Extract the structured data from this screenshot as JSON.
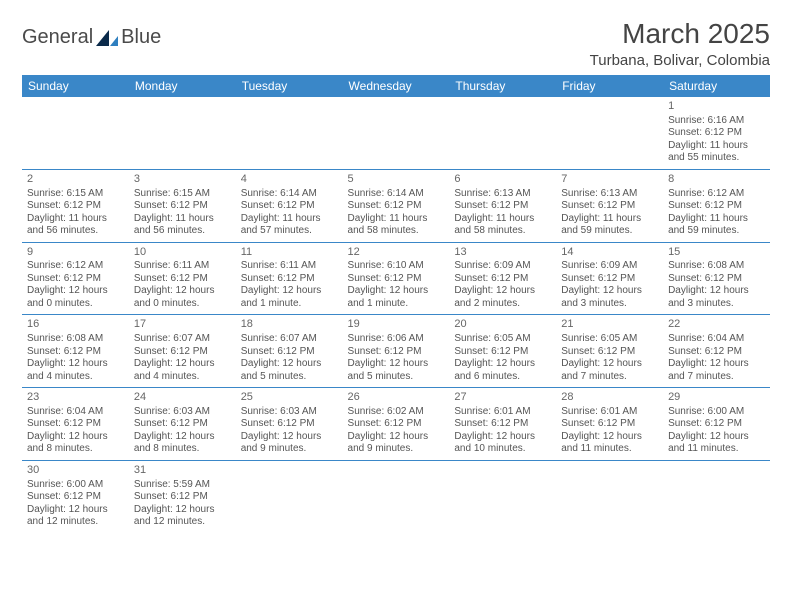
{
  "brand": {
    "part1": "General",
    "part2": "Blue"
  },
  "header": {
    "title": "March 2025",
    "location": "Turbana, Bolivar, Colombia"
  },
  "style": {
    "header_bg": "#3a87c8",
    "header_fg": "#ffffff",
    "border_color": "#3a87c8",
    "text_color": "#555555",
    "title_color": "#444444",
    "title_fontsize": 28,
    "location_fontsize": 15,
    "dayhdr_fontsize": 12,
    "cell_fontsize": 10
  },
  "columns": [
    "Sunday",
    "Monday",
    "Tuesday",
    "Wednesday",
    "Thursday",
    "Friday",
    "Saturday"
  ],
  "weeks": [
    [
      null,
      null,
      null,
      null,
      null,
      null,
      {
        "n": "1",
        "sr": "6:16 AM",
        "ss": "6:12 PM",
        "dl": "11 hours and 55 minutes."
      }
    ],
    [
      {
        "n": "2",
        "sr": "6:15 AM",
        "ss": "6:12 PM",
        "dl": "11 hours and 56 minutes."
      },
      {
        "n": "3",
        "sr": "6:15 AM",
        "ss": "6:12 PM",
        "dl": "11 hours and 56 minutes."
      },
      {
        "n": "4",
        "sr": "6:14 AM",
        "ss": "6:12 PM",
        "dl": "11 hours and 57 minutes."
      },
      {
        "n": "5",
        "sr": "6:14 AM",
        "ss": "6:12 PM",
        "dl": "11 hours and 58 minutes."
      },
      {
        "n": "6",
        "sr": "6:13 AM",
        "ss": "6:12 PM",
        "dl": "11 hours and 58 minutes."
      },
      {
        "n": "7",
        "sr": "6:13 AM",
        "ss": "6:12 PM",
        "dl": "11 hours and 59 minutes."
      },
      {
        "n": "8",
        "sr": "6:12 AM",
        "ss": "6:12 PM",
        "dl": "11 hours and 59 minutes."
      }
    ],
    [
      {
        "n": "9",
        "sr": "6:12 AM",
        "ss": "6:12 PM",
        "dl": "12 hours and 0 minutes."
      },
      {
        "n": "10",
        "sr": "6:11 AM",
        "ss": "6:12 PM",
        "dl": "12 hours and 0 minutes."
      },
      {
        "n": "11",
        "sr": "6:11 AM",
        "ss": "6:12 PM",
        "dl": "12 hours and 1 minute."
      },
      {
        "n": "12",
        "sr": "6:10 AM",
        "ss": "6:12 PM",
        "dl": "12 hours and 1 minute."
      },
      {
        "n": "13",
        "sr": "6:09 AM",
        "ss": "6:12 PM",
        "dl": "12 hours and 2 minutes."
      },
      {
        "n": "14",
        "sr": "6:09 AM",
        "ss": "6:12 PM",
        "dl": "12 hours and 3 minutes."
      },
      {
        "n": "15",
        "sr": "6:08 AM",
        "ss": "6:12 PM",
        "dl": "12 hours and 3 minutes."
      }
    ],
    [
      {
        "n": "16",
        "sr": "6:08 AM",
        "ss": "6:12 PM",
        "dl": "12 hours and 4 minutes."
      },
      {
        "n": "17",
        "sr": "6:07 AM",
        "ss": "6:12 PM",
        "dl": "12 hours and 4 minutes."
      },
      {
        "n": "18",
        "sr": "6:07 AM",
        "ss": "6:12 PM",
        "dl": "12 hours and 5 minutes."
      },
      {
        "n": "19",
        "sr": "6:06 AM",
        "ss": "6:12 PM",
        "dl": "12 hours and 5 minutes."
      },
      {
        "n": "20",
        "sr": "6:05 AM",
        "ss": "6:12 PM",
        "dl": "12 hours and 6 minutes."
      },
      {
        "n": "21",
        "sr": "6:05 AM",
        "ss": "6:12 PM",
        "dl": "12 hours and 7 minutes."
      },
      {
        "n": "22",
        "sr": "6:04 AM",
        "ss": "6:12 PM",
        "dl": "12 hours and 7 minutes."
      }
    ],
    [
      {
        "n": "23",
        "sr": "6:04 AM",
        "ss": "6:12 PM",
        "dl": "12 hours and 8 minutes."
      },
      {
        "n": "24",
        "sr": "6:03 AM",
        "ss": "6:12 PM",
        "dl": "12 hours and 8 minutes."
      },
      {
        "n": "25",
        "sr": "6:03 AM",
        "ss": "6:12 PM",
        "dl": "12 hours and 9 minutes."
      },
      {
        "n": "26",
        "sr": "6:02 AM",
        "ss": "6:12 PM",
        "dl": "12 hours and 9 minutes."
      },
      {
        "n": "27",
        "sr": "6:01 AM",
        "ss": "6:12 PM",
        "dl": "12 hours and 10 minutes."
      },
      {
        "n": "28",
        "sr": "6:01 AM",
        "ss": "6:12 PM",
        "dl": "12 hours and 11 minutes."
      },
      {
        "n": "29",
        "sr": "6:00 AM",
        "ss": "6:12 PM",
        "dl": "12 hours and 11 minutes."
      }
    ],
    [
      {
        "n": "30",
        "sr": "6:00 AM",
        "ss": "6:12 PM",
        "dl": "12 hours and 12 minutes."
      },
      {
        "n": "31",
        "sr": "5:59 AM",
        "ss": "6:12 PM",
        "dl": "12 hours and 12 minutes."
      },
      null,
      null,
      null,
      null,
      null
    ]
  ],
  "labels": {
    "sunrise": "Sunrise: ",
    "sunset": "Sunset: ",
    "daylight": "Daylight: "
  }
}
